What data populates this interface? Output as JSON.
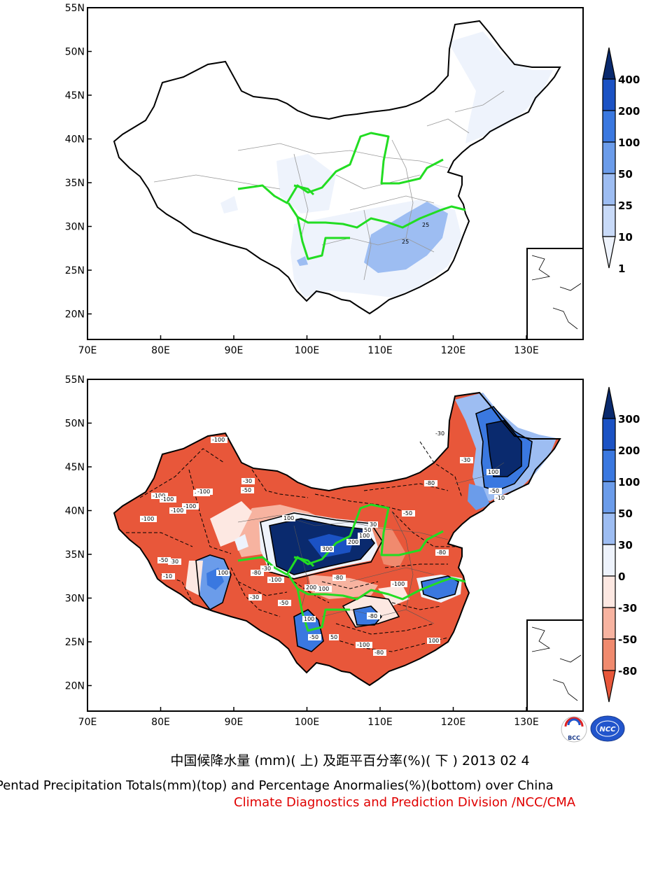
{
  "maps": [
    {
      "id": "top",
      "lat_ticks": [
        "55N",
        "50N",
        "45N",
        "40N",
        "35N",
        "30N",
        "25N",
        "20N"
      ],
      "lon_ticks": [
        "70E",
        "80E",
        "90E",
        "100E",
        "110E",
        "120E",
        "130E"
      ],
      "colorbar": {
        "labels": [
          "400",
          "200",
          "100",
          "50",
          "25",
          "10",
          "1"
        ],
        "colors": [
          "#0a2a6e",
          "#1b52c4",
          "#3a78e0",
          "#6b9cea",
          "#9dbdf2",
          "#c8daf8",
          "#eef3fc"
        ]
      },
      "contour_labels": [
        "25",
        "25"
      ]
    },
    {
      "id": "bottom",
      "lat_ticks": [
        "55N",
        "50N",
        "45N",
        "40N",
        "35N",
        "30N",
        "25N",
        "20N"
      ],
      "lon_ticks": [
        "70E",
        "80E",
        "90E",
        "100E",
        "110E",
        "120E",
        "130E"
      ],
      "colorbar": {
        "labels": [
          "300",
          "200",
          "100",
          "50",
          "30",
          "0",
          "-30",
          "-50",
          "-80"
        ],
        "colors": [
          "#0a2a6e",
          "#1b52c4",
          "#3a78e0",
          "#6b9cea",
          "#9dbdf2",
          "#eef3fc",
          "#fde8e2",
          "#f7b3a0",
          "#f08a6e",
          "#e8573a"
        ]
      },
      "contour_labels": [
        "-100",
        "-100",
        "-100",
        "-100",
        "-100",
        "-100",
        "-100",
        "-30",
        "-50",
        "-80",
        "100",
        "300",
        "200",
        "100",
        "50",
        "30",
        "-80",
        "-100",
        "-50",
        "-30",
        "100",
        "-10",
        "-30",
        "-50",
        "-100",
        "-80",
        "-30",
        "100",
        "-50",
        "-10",
        "-30",
        "-50",
        "-80",
        "-100",
        "300",
        "200",
        "100",
        "50",
        "-100",
        "-80",
        "-100",
        "-30",
        "-50",
        "-80",
        "100"
      ]
    }
  ],
  "logos": {
    "left": "BCC",
    "right": "NCC"
  },
  "captions": {
    "chinese": "中国候降水量 (mm)( 上) 及距平百分率(%)( 下 ) 2013 02 4",
    "english": "Pentad Precipitation Totals(mm)(top) and Percentage Anormalies(%)(bottom) over China",
    "org": "Climate Diagnostics and Prediction Division /NCC/CMA"
  }
}
